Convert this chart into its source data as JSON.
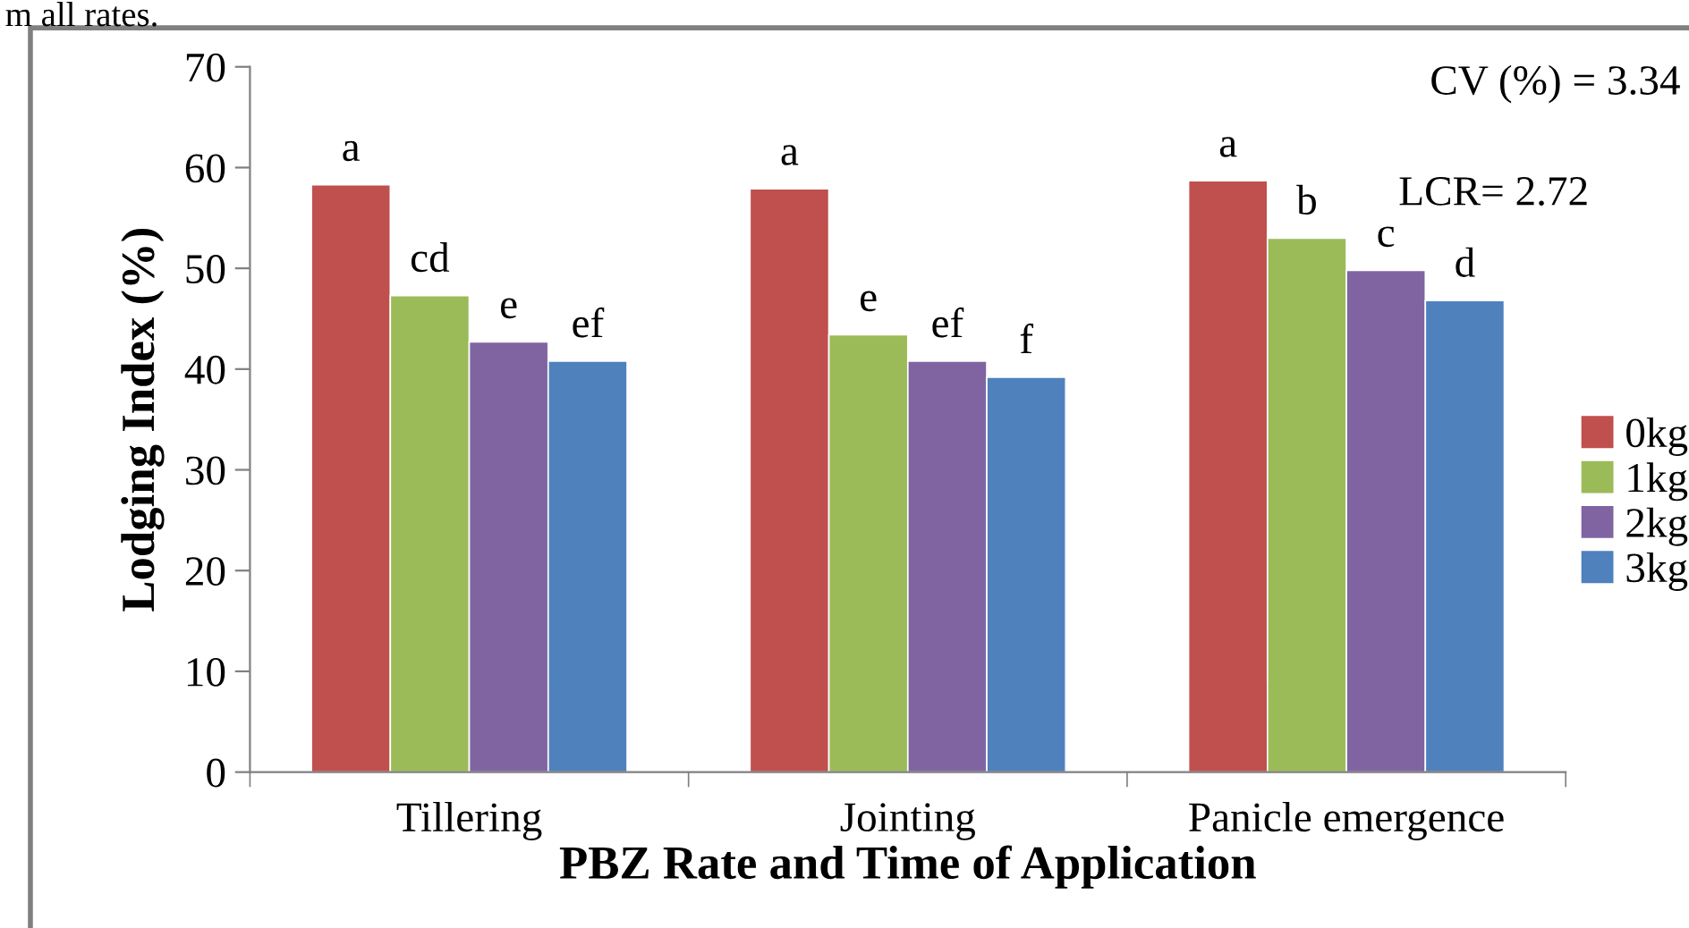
{
  "chart_data": {
    "type": "bar",
    "xlabel": "PBZ Rate and Time of Application",
    "ylabel": "Lodging Index (%)",
    "categories": [
      "Tillering",
      "Jointing",
      "Panicle emergence"
    ],
    "series": [
      {
        "name": "0kg",
        "color": "#c0504d",
        "values": [
          58.3,
          57.9,
          58.7
        ],
        "value_labels": [
          "a",
          "a",
          "a"
        ]
      },
      {
        "name": "1kg",
        "color": "#9bbb59",
        "values": [
          47.3,
          43.4,
          53.0
        ],
        "value_labels": [
          "cd",
          "e",
          "b"
        ]
      },
      {
        "name": "2kg",
        "color": "#8064a2",
        "values": [
          42.7,
          40.8,
          49.8
        ],
        "value_labels": [
          "e",
          "ef",
          "c"
        ]
      },
      {
        "name": "3kg",
        "color": "#4f81bd",
        "values": [
          40.8,
          39.2,
          46.8
        ],
        "value_labels": [
          "ef",
          "f",
          "d"
        ]
      }
    ],
    "ylim": [
      0,
      70
    ],
    "yticks": [
      0,
      10,
      20,
      30,
      40,
      50,
      60,
      70
    ],
    "grid": false,
    "legend": "right",
    "annotations": [
      "m all rates.",
      "CV (%) = 3.34",
      "LCR= 2.72"
    ]
  }
}
